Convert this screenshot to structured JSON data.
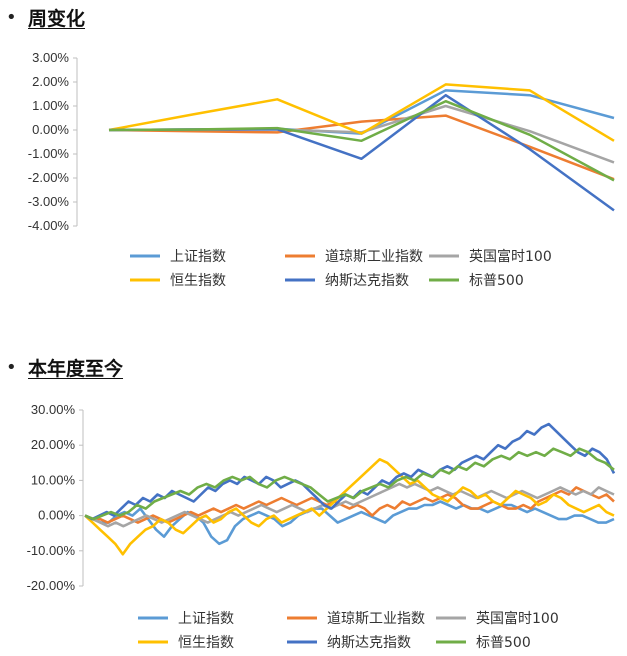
{
  "sections": [
    {
      "bullet": "•",
      "title": "周变化"
    },
    {
      "bullet": "•",
      "title": "本年度至今"
    }
  ],
  "chart_data": [
    {
      "type": "line",
      "title": "周变化",
      "xlabel": "",
      "ylabel": "",
      "ylim": [
        -4.0,
        3.0
      ],
      "yticks": [
        "3.00%",
        "2.00%",
        "1.00%",
        "0.00%",
        "-1.00%",
        "-2.00%",
        "-3.00%",
        "-4.00%"
      ],
      "yticks_values": [
        3,
        2,
        1,
        0,
        -1,
        -2,
        -3,
        -4
      ],
      "x": [
        0,
        1,
        2,
        3,
        4,
        5,
        6
      ],
      "grid": false,
      "legend_position": "bottom",
      "series": [
        {
          "name": "上证指数",
          "color": "#5B9BD5",
          "values": [
            0,
            0.02,
            0.05,
            -0.15,
            1.65,
            1.45,
            0.5
          ]
        },
        {
          "name": "道琼斯工业指数",
          "color": "#ED7D31",
          "values": [
            0,
            -0.05,
            -0.1,
            0.35,
            0.6,
            -0.7,
            -2.05
          ]
        },
        {
          "name": "英国富时100",
          "color": "#A5A5A5",
          "values": [
            0,
            0.02,
            0.02,
            -0.1,
            1.0,
            -0.05,
            -1.35
          ]
        },
        {
          "name": "恒生指数",
          "color": "#FFC000",
          "values": [
            0,
            0.65,
            1.28,
            -0.15,
            1.9,
            1.65,
            -0.45
          ]
        },
        {
          "name": "纳斯达克指数",
          "color": "#4472C4",
          "values": [
            0,
            0.02,
            0.03,
            -1.2,
            1.45,
            -0.8,
            -3.35
          ]
        },
        {
          "name": "标普500",
          "color": "#70AD47",
          "values": [
            0,
            0.02,
            0.08,
            -0.45,
            1.2,
            -0.2,
            -2.1
          ]
        }
      ]
    },
    {
      "type": "line",
      "title": "本年度至今",
      "xlabel": "",
      "ylabel": "",
      "ylim": [
        -20.0,
        30.0
      ],
      "yticks": [
        "30.00%",
        "20.00%",
        "10.00%",
        "0.00%",
        "-10.00%",
        "-20.00%"
      ],
      "yticks_values": [
        30,
        20,
        10,
        0,
        -10,
        -20
      ],
      "grid": false,
      "legend_position": "bottom",
      "series": [
        {
          "name": "上证指数",
          "color": "#5B9BD5",
          "values": [
            0,
            -1,
            -2,
            -2,
            0,
            1,
            0,
            2,
            -1,
            -4,
            -6,
            -3,
            -1,
            1,
            0,
            -2,
            -6,
            -8,
            -7,
            -3,
            -1,
            0,
            1,
            0,
            -1,
            -3,
            -2,
            0,
            1,
            2,
            2,
            0,
            -2,
            -1,
            0,
            1,
            0,
            -1,
            -2,
            0,
            1,
            2,
            2,
            3,
            3,
            4,
            3,
            2,
            3,
            2,
            2,
            1,
            2,
            3,
            3,
            2,
            1,
            2,
            1,
            0,
            -1,
            -1,
            0,
            0,
            -1,
            -2,
            -2,
            -1
          ]
        },
        {
          "name": "道琼斯工业指数",
          "color": "#ED7D31",
          "values": [
            0,
            -1,
            -1,
            -2,
            -1,
            0,
            -1,
            -2,
            -1,
            0,
            -1,
            -2,
            -1,
            0,
            1,
            0,
            1,
            2,
            1,
            2,
            3,
            2,
            3,
            4,
            3,
            4,
            5,
            4,
            3,
            4,
            5,
            4,
            3,
            4,
            3,
            2,
            3,
            2,
            0,
            2,
            3,
            2,
            4,
            3,
            4,
            5,
            4,
            5,
            6,
            5,
            3,
            2,
            2,
            3,
            4,
            3,
            2,
            2,
            3,
            2,
            4,
            5,
            6,
            7,
            6,
            8,
            7,
            6,
            5,
            6,
            4
          ]
        },
        {
          "name": "英国富时100",
          "color": "#A5A5A5",
          "values": [
            0,
            -1,
            -2,
            -3,
            -2,
            -3,
            -2,
            -1,
            0,
            -1,
            -2,
            -1,
            0,
            1,
            0,
            -1,
            -2,
            -1,
            0,
            1,
            0,
            1,
            2,
            3,
            2,
            1,
            2,
            3,
            2,
            1,
            2,
            3,
            2,
            3,
            4,
            3,
            4,
            5,
            6,
            7,
            8,
            9,
            8,
            9,
            8,
            7,
            8,
            7,
            6,
            7,
            6,
            5,
            6,
            7,
            6,
            5,
            6,
            7,
            6,
            5,
            6,
            7,
            8,
            7,
            6,
            7,
            6,
            8,
            7,
            6
          ]
        },
        {
          "name": "恒生指数",
          "color": "#FFC000",
          "values": [
            0,
            -2,
            -4,
            -6,
            -8,
            -11,
            -8,
            -6,
            -4,
            -3,
            -1,
            -2,
            -4,
            -5,
            -3,
            -1,
            0,
            -2,
            -1,
            1,
            2,
            0,
            -2,
            -3,
            -1,
            0,
            -2,
            -1,
            0,
            1,
            2,
            0,
            2,
            4,
            6,
            8,
            10,
            12,
            14,
            16,
            15,
            13,
            11,
            9,
            10,
            8,
            6,
            5,
            4,
            6,
            8,
            7,
            5,
            6,
            4,
            3,
            5,
            7,
            6,
            5,
            3,
            4,
            6,
            5,
            3,
            2,
            1,
            2,
            3,
            1,
            0
          ]
        },
        {
          "name": "纳斯达克指数",
          "color": "#4472C4",
          "values": [
            0,
            -1,
            0,
            1,
            0,
            2,
            4,
            3,
            5,
            4,
            6,
            5,
            7,
            6,
            5,
            4,
            6,
            8,
            7,
            9,
            10,
            9,
            11,
            10,
            9,
            11,
            10,
            8,
            9,
            10,
            9,
            7,
            5,
            3,
            2,
            4,
            6,
            5,
            7,
            6,
            8,
            10,
            9,
            11,
            12,
            11,
            13,
            12,
            11,
            13,
            14,
            13,
            15,
            16,
            17,
            16,
            18,
            20,
            19,
            21,
            22,
            24,
            23,
            25,
            26,
            24,
            22,
            20,
            18,
            17,
            19,
            18,
            16,
            12
          ]
        },
        {
          "name": "标普500",
          "color": "#70AD47",
          "values": [
            0,
            -1,
            0,
            1,
            0,
            1,
            3,
            2,
            4,
            5,
            6,
            7,
            6,
            8,
            9,
            8,
            10,
            11,
            10,
            11,
            9,
            8,
            10,
            11,
            10,
            9,
            8,
            6,
            4,
            5,
            6,
            5,
            7,
            8,
            9,
            8,
            10,
            11,
            10,
            12,
            11,
            13,
            12,
            14,
            13,
            15,
            14,
            16,
            17,
            16,
            18,
            17,
            18,
            17,
            19,
            18,
            17,
            19,
            18,
            16,
            15,
            13
          ]
        }
      ]
    }
  ]
}
